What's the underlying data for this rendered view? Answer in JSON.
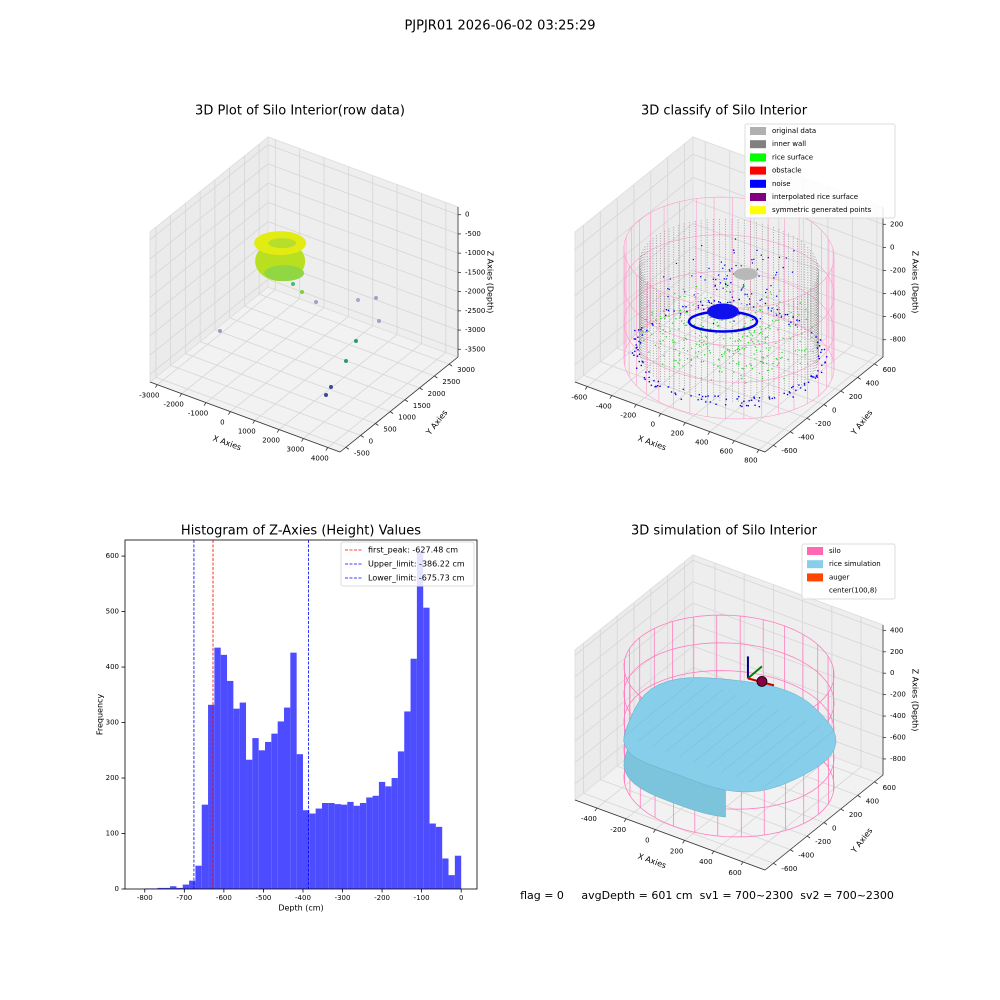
{
  "suptitle": "PJPJR01 2026-06-02 03:25:29",
  "footer": "flag = 0     avgDepth = 601 cm  sv1 = 700~2300  sv2 = 700~2300",
  "chart_data": [
    {
      "type": "scatter3d",
      "title": "3D Plot of Silo Interior(row data)",
      "xlabel": "X Axies",
      "ylabel": "Y Axies",
      "zlabel": "Z Axies (Depth)",
      "xlim": [
        -3300,
        4500
      ],
      "xticks": [
        -3000,
        -2000,
        -1000,
        0,
        1000,
        2000,
        3000,
        4000
      ],
      "ylim": [
        -700,
        3300
      ],
      "yticks": [
        -500,
        0,
        500,
        1000,
        1500,
        2000,
        2500,
        3000
      ],
      "zlim": [
        -3700,
        200
      ],
      "zticks": [
        0,
        -500,
        -1000,
        -1500,
        -2000,
        -2500,
        -3000,
        -3500
      ],
      "grid": true
    },
    {
      "type": "scatter3d",
      "title": "3D classify of Silo Interior",
      "xlabel": "X Axies",
      "ylabel": "Y Axies",
      "zlabel": "Z Axies (Depth)",
      "xlim": [
        -700,
        850
      ],
      "xticks": [
        -600,
        -400,
        -200,
        0,
        200,
        400,
        600,
        800
      ],
      "ylim": [
        -700,
        700
      ],
      "yticks": [
        -600,
        -400,
        -200,
        0,
        200,
        400,
        600
      ],
      "zlim": [
        -950,
        350
      ],
      "zticks": [
        200,
        0,
        -200,
        -400,
        -600,
        -800
      ],
      "grid": true,
      "legend": "upper right",
      "series": [
        {
          "name": "original data",
          "color": "#b0b0b0"
        },
        {
          "name": "inner wall",
          "color": "#808080"
        },
        {
          "name": "rice surface",
          "color": "#00ff00"
        },
        {
          "name": "obstacle",
          "color": "#ff0000"
        },
        {
          "name": "noise",
          "color": "#0000ff"
        },
        {
          "name": "interpolated rice surface",
          "color": "#800080"
        },
        {
          "name": "symmetric generated points",
          "color": "#ffff00"
        }
      ]
    },
    {
      "type": "histogram",
      "title": "Histogram of Z-Axies (Height) Values",
      "xlabel": "Depth (cm)",
      "ylabel": "Frequency",
      "color": "#4d4dff",
      "bins": [
        -800,
        -784,
        -768,
        -752,
        -736,
        -720,
        -704,
        -688,
        -672,
        -656,
        -640,
        -624,
        -608,
        -592,
        -576,
        -560,
        -544,
        -528,
        -512,
        -496,
        -480,
        -464,
        -448,
        -432,
        -416,
        -400,
        -384,
        -368,
        -352,
        -336,
        -320,
        -304,
        -288,
        -272,
        -256,
        -240,
        -224,
        -208,
        -192,
        -176,
        -160,
        -144,
        -128,
        -112,
        -96,
        -80,
        -64,
        -48,
        -32,
        -16,
        0
      ],
      "counts": [
        1,
        1,
        2,
        2,
        5,
        2,
        8,
        15,
        42,
        152,
        332,
        435,
        422,
        375,
        325,
        336,
        233,
        272,
        250,
        265,
        280,
        302,
        327,
        426,
        243,
        142,
        136,
        145,
        155,
        155,
        153,
        152,
        157,
        150,
        155,
        165,
        168,
        193,
        185,
        200,
        248,
        320,
        415,
        608,
        507,
        118,
        112,
        55,
        25,
        60
      ],
      "xlim": [
        -850,
        40
      ],
      "xticks": [
        -800,
        -700,
        -600,
        -500,
        -400,
        -300,
        -200,
        -100,
        0
      ],
      "ylim": [
        0,
        629
      ],
      "yticks": [
        0,
        100,
        200,
        300,
        400,
        500,
        600
      ],
      "legend": "upper right",
      "vlines": [
        {
          "label": "first_peak: -627.48 cm",
          "value": -627.48,
          "color": "#ff0000"
        },
        {
          "label": "Upper_limit: -386.22 cm",
          "value": -386.22,
          "color": "#0000ff"
        },
        {
          "label": "Lower_limit: -675.73 cm",
          "value": -675.73,
          "color": "#0000ff"
        }
      ]
    },
    {
      "type": "surface3d",
      "title": "3D simulation of Silo Interior",
      "xlabel": "X Axies",
      "ylabel": "Y Axies",
      "zlabel": "Z Axies (Depth)",
      "xlim": [
        -550,
        750
      ],
      "xticks": [
        -400,
        -200,
        0,
        200,
        400,
        600
      ],
      "ylim": [
        -700,
        700
      ],
      "yticks": [
        -600,
        -400,
        -200,
        0,
        200,
        400,
        600
      ],
      "zlim": [
        -950,
        450
      ],
      "zticks": [
        400,
        200,
        0,
        -200,
        -400,
        -600,
        -800
      ],
      "grid": true,
      "legend": "upper right",
      "series": [
        {
          "name": "silo",
          "color": "#ff69b4"
        },
        {
          "name": "rice simulation",
          "color": "#87ceeb"
        },
        {
          "name": "auger",
          "color": "#ff4500"
        },
        {
          "name": "center(100,8)"
        }
      ]
    }
  ]
}
